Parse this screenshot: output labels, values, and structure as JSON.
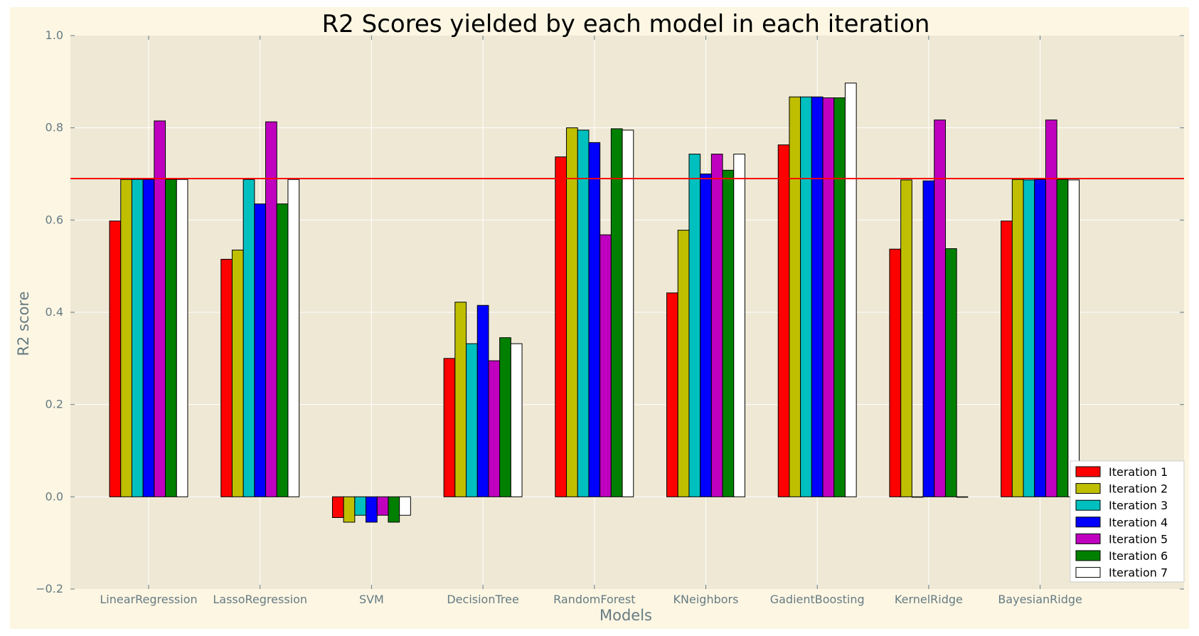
{
  "chart_data": {
    "type": "bar",
    "title": "R2 Scores yielded by each model in each iteration",
    "xlabel": "Models",
    "ylabel": "R2 score",
    "ylim": [
      -0.2,
      1.0
    ],
    "yticks": [
      -0.2,
      0.0,
      0.2,
      0.4,
      0.6,
      0.8,
      1.0
    ],
    "ytick_labels": [
      "−0.2",
      "0.0",
      "0.2",
      "0.4",
      "0.6",
      "0.8",
      "1.0"
    ],
    "grid": true,
    "legend_position": "bottom-right",
    "reference_line": {
      "y": 0.69,
      "color": "#ff0000"
    },
    "categories": [
      "LinearRegression",
      "LassoRegression",
      "SVM",
      "DecisionTree",
      "RandomForest",
      "KNeighbors",
      "GadientBoosting",
      "KernelRidge",
      "BayesianRidge"
    ],
    "series": [
      {
        "name": "Iteration 1",
        "color": "#ff0000",
        "values": [
          0.598,
          0.515,
          -0.045,
          0.3,
          0.737,
          0.442,
          0.763,
          0.537,
          0.598
        ]
      },
      {
        "name": "Iteration 2",
        "color": "#bfbf00",
        "values": [
          0.688,
          0.535,
          -0.055,
          0.422,
          0.8,
          0.578,
          0.867,
          0.687,
          0.688
        ]
      },
      {
        "name": "Iteration 3",
        "color": "#00bfbf",
        "values": [
          0.688,
          0.688,
          -0.04,
          0.332,
          0.795,
          0.743,
          0.867,
          0.0,
          0.687
        ]
      },
      {
        "name": "Iteration 4",
        "color": "#0000ff",
        "values": [
          0.688,
          0.635,
          -0.055,
          0.415,
          0.768,
          0.7,
          0.867,
          0.685,
          0.688
        ]
      },
      {
        "name": "Iteration 5",
        "color": "#bf00bf",
        "values": [
          0.815,
          0.813,
          -0.04,
          0.295,
          0.568,
          0.743,
          0.865,
          0.817,
          0.817
        ]
      },
      {
        "name": "Iteration 6",
        "color": "#008000",
        "values": [
          0.688,
          0.635,
          -0.055,
          0.345,
          0.798,
          0.708,
          0.865,
          0.538,
          0.688
        ]
      },
      {
        "name": "Iteration 7",
        "color": "#ffffff",
        "values": [
          0.688,
          0.688,
          -0.04,
          0.332,
          0.795,
          0.743,
          0.897,
          0.0,
          0.687
        ]
      }
    ]
  },
  "colors": {
    "figure_background": "#fdf6e3",
    "axes_background": "#eee8d5",
    "gridline": "#ffffff",
    "axis_text": "#657b83"
  }
}
